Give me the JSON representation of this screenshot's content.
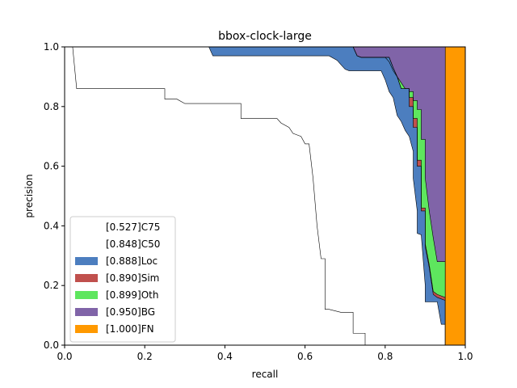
{
  "chart_data": {
    "type": "area",
    "title": "bbox-clock-large",
    "xlabel": "recall",
    "ylabel": "precision",
    "xlim": [
      0,
      1
    ],
    "ylim": [
      0,
      1
    ],
    "xticks": [
      "0.0",
      "0.2",
      "0.4",
      "0.6",
      "0.8",
      "1.0"
    ],
    "yticks": [
      "0.0",
      "0.2",
      "0.4",
      "0.6",
      "0.8",
      "1.0"
    ],
    "grid": false,
    "legend_position": "lower-left",
    "legend": [
      {
        "label": "[0.527]C75",
        "color": "#ffffff"
      },
      {
        "label": "[0.848]C50",
        "color": "#ffffff"
      },
      {
        "label": "[0.888]Loc",
        "color": "#4c7ebf"
      },
      {
        "label": "[0.890]Sim",
        "color": "#c0504d"
      },
      {
        "label": "[0.899]Oth",
        "color": "#5ee65e"
      },
      {
        "label": "[0.950]BG",
        "color": "#8064a8"
      },
      {
        "label": "[1.000]FN",
        "color": "#ff9900"
      }
    ],
    "series": [
      {
        "name": "[0.527]C75",
        "color": "#ffffff",
        "x": [
          0,
          0.02,
          0.03,
          0.25,
          0.25,
          0.28,
          0.3,
          0.44,
          0.44,
          0.53,
          0.54,
          0.56,
          0.57,
          0.58,
          0.59,
          0.6,
          0.61,
          0.62,
          0.62,
          0.63,
          0.64,
          0.65,
          0.65,
          0.66,
          0.69,
          0.72,
          0.72,
          0.75,
          0.75,
          1.0
        ],
        "y": [
          1.0,
          1.0,
          0.86,
          0.86,
          0.825,
          0.825,
          0.81,
          0.81,
          0.76,
          0.76,
          0.745,
          0.73,
          0.71,
          0.705,
          0.7,
          0.675,
          0.675,
          0.56,
          0.56,
          0.4,
          0.29,
          0.29,
          0.12,
          0.12,
          0.11,
          0.11,
          0.04,
          0.04,
          0.0,
          0.0
        ]
      },
      {
        "name": "[0.848]C50",
        "color": "#ffffff",
        "x": [
          0,
          0.36,
          0.37,
          0.66,
          0.68,
          0.69,
          0.7,
          0.71,
          0.72,
          0.73,
          0.75,
          0.79,
          0.8,
          0.81,
          0.82,
          0.83,
          0.84,
          0.85,
          0.86,
          0.87,
          0.87,
          0.88,
          0.88,
          0.89,
          0.9,
          0.9,
          0.93,
          0.94,
          0.95,
          0.95
        ],
        "y": [
          1.0,
          1.0,
          0.97,
          0.97,
          0.955,
          0.94,
          0.925,
          0.92,
          0.92,
          0.92,
          0.92,
          0.92,
          0.89,
          0.85,
          0.83,
          0.77,
          0.75,
          0.72,
          0.7,
          0.65,
          0.56,
          0.45,
          0.375,
          0.37,
          0.2,
          0.145,
          0.145,
          0.07,
          0.07,
          0.0
        ]
      },
      {
        "name": "[0.888]Loc",
        "color": "#4c7ebf",
        "x": [
          0,
          0.72,
          0.73,
          0.74,
          0.81,
          0.82,
          0.83,
          0.84,
          0.86,
          0.86,
          0.87,
          0.87,
          0.88,
          0.88,
          0.89,
          0.89,
          0.9,
          0.9,
          0.91,
          0.92,
          0.93,
          0.94,
          0.95,
          0.95
        ],
        "y": [
          1.0,
          1.0,
          0.97,
          0.965,
          0.965,
          0.93,
          0.9,
          0.86,
          0.86,
          0.8,
          0.8,
          0.73,
          0.73,
          0.6,
          0.6,
          0.45,
          0.45,
          0.33,
          0.26,
          0.17,
          0.16,
          0.155,
          0.15,
          0.0
        ]
      },
      {
        "name": "[0.890]Sim",
        "color": "#c0504d",
        "x": [
          0,
          0.72,
          0.73,
          0.74,
          0.81,
          0.82,
          0.83,
          0.84,
          0.86,
          0.86,
          0.87,
          0.87,
          0.88,
          0.88,
          0.89,
          0.89,
          0.9,
          0.9,
          0.91,
          0.92,
          0.93,
          0.94,
          0.95,
          0.95
        ],
        "y": [
          1.0,
          1.0,
          0.97,
          0.965,
          0.965,
          0.93,
          0.9,
          0.86,
          0.86,
          0.83,
          0.83,
          0.76,
          0.76,
          0.62,
          0.62,
          0.46,
          0.46,
          0.34,
          0.27,
          0.18,
          0.17,
          0.165,
          0.16,
          0.0
        ]
      },
      {
        "name": "[0.899]Oth",
        "color": "#5ee65e",
        "x": [
          0,
          0.72,
          0.73,
          0.74,
          0.8,
          0.81,
          0.82,
          0.83,
          0.84,
          0.85,
          0.86,
          0.86,
          0.87,
          0.87,
          0.88,
          0.88,
          0.89,
          0.89,
          0.9,
          0.9,
          0.91,
          0.92,
          0.93,
          0.94,
          0.95,
          0.95
        ],
        "y": [
          1.0,
          1.0,
          0.97,
          0.965,
          0.965,
          0.95,
          0.92,
          0.9,
          0.88,
          0.86,
          0.86,
          0.85,
          0.85,
          0.82,
          0.82,
          0.79,
          0.79,
          0.69,
          0.69,
          0.56,
          0.45,
          0.36,
          0.28,
          0.28,
          0.28,
          0.0
        ]
      },
      {
        "name": "[0.950]BG",
        "color": "#8064a8",
        "x": [
          0,
          0.95,
          0.95
        ],
        "y": [
          1.0,
          1.0,
          0.0
        ]
      },
      {
        "name": "[1.000]FN",
        "color": "#ff9900",
        "x": [
          0,
          1.0,
          1.0
        ],
        "y": [
          1.0,
          1.0,
          0.0
        ]
      }
    ]
  }
}
